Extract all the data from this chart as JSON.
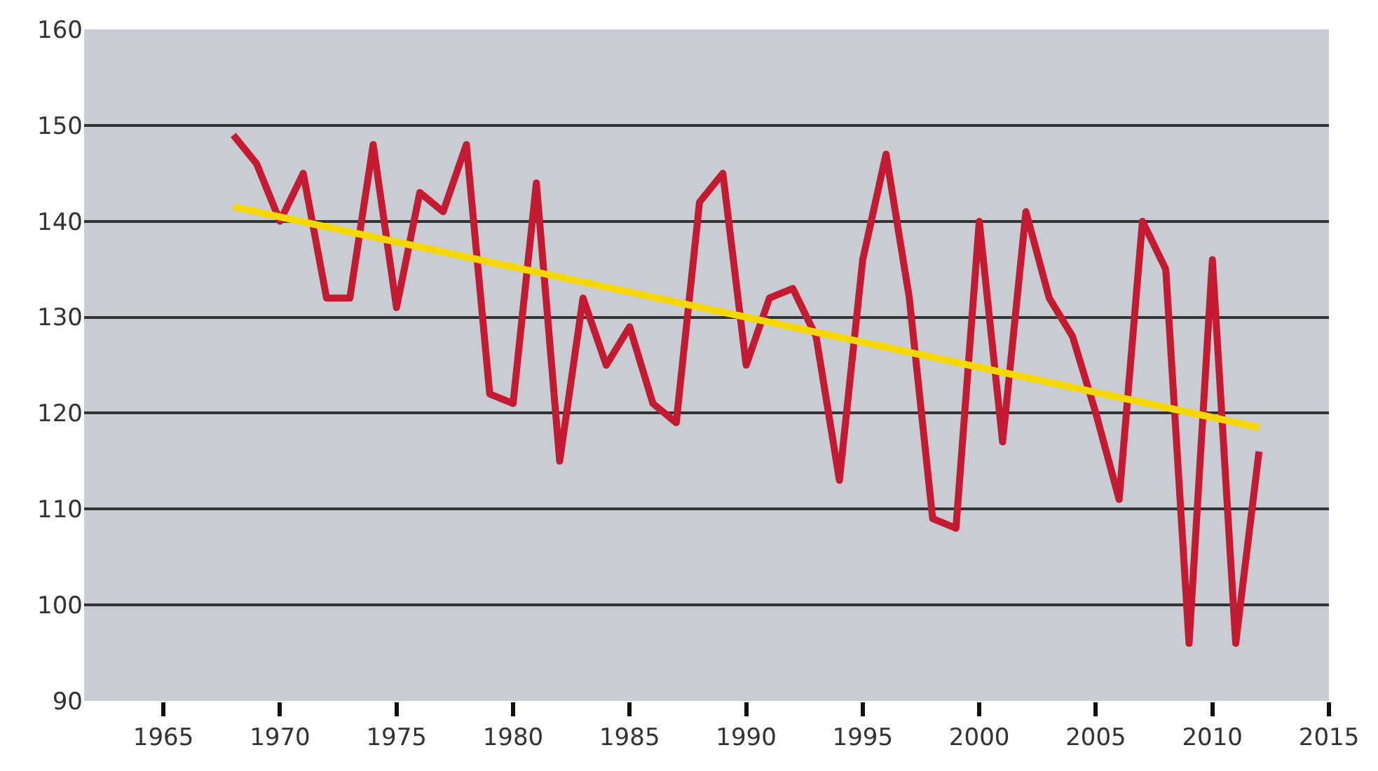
{
  "chart_data": {
    "type": "line",
    "xlim": [
      1961.6,
      2015
    ],
    "xticks": [
      1965,
      1970,
      1975,
      1980,
      1985,
      1990,
      1995,
      2000,
      2005,
      2010,
      2015
    ],
    "ylim": [
      90,
      160
    ],
    "yticks": [
      90,
      100,
      110,
      120,
      130,
      140,
      150,
      160
    ],
    "grid": "y",
    "marker": "none",
    "line_style": "solid",
    "series": [
      {
        "color": "#c41a32",
        "x": [
          1968,
          1969,
          1970,
          1971,
          1972,
          1973,
          1974,
          1975,
          1976,
          1977,
          1978,
          1979,
          1980,
          1981,
          1982,
          1983,
          1984,
          1985,
          1986,
          1987,
          1988,
          1989,
          1990,
          1991,
          1992,
          1993,
          1994,
          1995,
          1996,
          1997,
          1998,
          1999,
          2000,
          2001,
          2002,
          2003,
          2004,
          2005,
          2006,
          2007,
          2008,
          2009,
          2010,
          2011,
          2012
        ],
        "values": [
          149,
          146,
          140,
          145,
          132,
          132,
          148,
          131,
          143,
          141,
          148,
          122,
          121,
          144,
          115,
          132,
          125,
          129,
          121,
          119,
          142,
          145,
          125,
          132,
          133,
          128,
          113,
          136,
          147,
          132,
          109,
          108,
          140,
          117,
          141,
          132,
          128,
          120,
          111,
          140,
          135,
          96,
          136,
          96,
          116
        ]
      },
      {
        "color": "#f5d800",
        "x": [
          1968,
          2012
        ],
        "values": [
          141.5,
          118.5
        ]
      }
    ]
  }
}
